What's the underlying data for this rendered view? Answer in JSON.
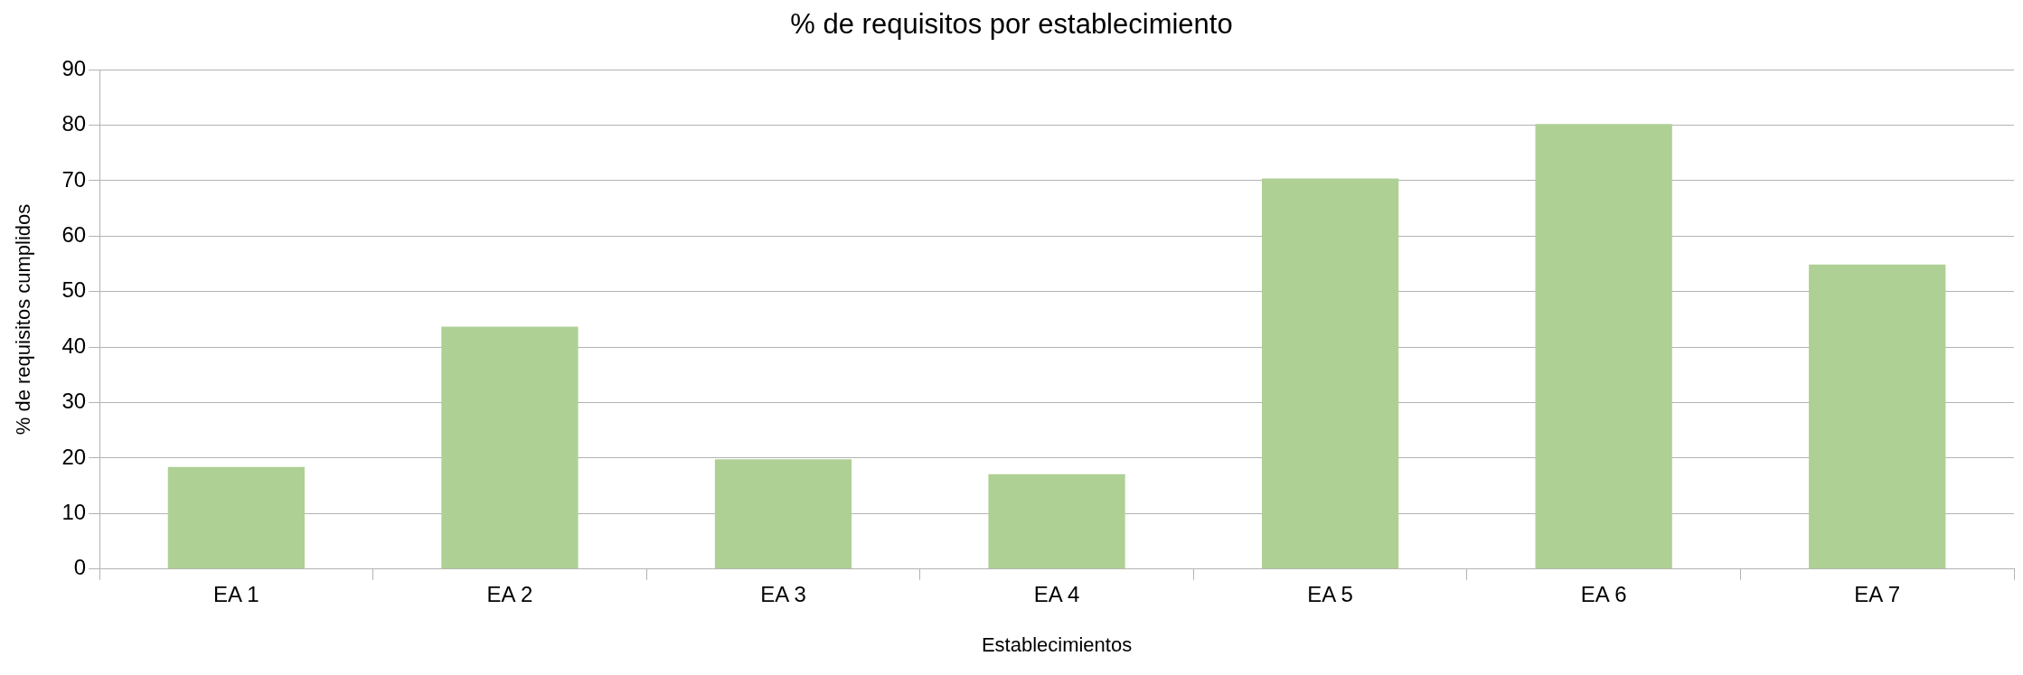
{
  "chart_data": {
    "type": "bar",
    "title": "% de requisitos por establecimiento",
    "xlabel": "Establecimientos",
    "ylabel": "% de requisitos cumplidos",
    "categories": [
      "EA 1",
      "EA 2",
      "EA 3",
      "EA 4",
      "EA 5",
      "EA 6",
      "EA 7"
    ],
    "values": [
      18.4,
      43.7,
      19.8,
      17.1,
      70.4,
      80.2,
      54.9
    ],
    "color": "#afd095",
    "ylim": [
      0,
      90
    ],
    "yticks": [
      0,
      10,
      20,
      30,
      40,
      50,
      60,
      70,
      80,
      90
    ],
    "grid": "y",
    "legend": false
  }
}
